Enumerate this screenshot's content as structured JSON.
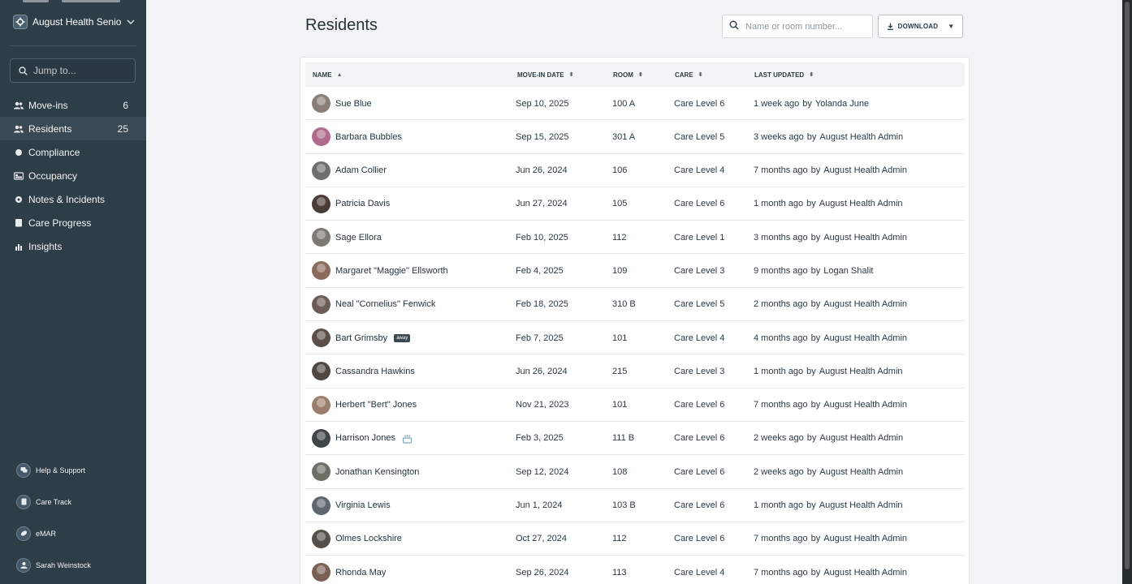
{
  "sidebar": {
    "org_name": "August Health Senior",
    "jump_placeholder": "Jump to...",
    "nav": [
      {
        "label": "Move-ins",
        "count": "6",
        "icon": "people-icon"
      },
      {
        "label": "Residents",
        "count": "25",
        "icon": "people-icon"
      },
      {
        "label": "Compliance",
        "count": "",
        "icon": "circle-check-icon"
      },
      {
        "label": "Occupancy",
        "count": "",
        "icon": "bed-icon"
      },
      {
        "label": "Notes & Incidents",
        "count": "",
        "icon": "notes-icon"
      },
      {
        "label": "Care Progress",
        "count": "",
        "icon": "clipboard-icon"
      },
      {
        "label": "Insights",
        "count": "",
        "icon": "chart-icon"
      }
    ],
    "bottom_links": [
      {
        "label": "Help & Support",
        "icon": "help-icon"
      },
      {
        "label": "Care Track",
        "icon": "care-track-icon"
      },
      {
        "label": "eMAR",
        "icon": "emar-icon"
      },
      {
        "label": "Sarah Weinstock",
        "icon": "user-icon"
      }
    ]
  },
  "page": {
    "title": "Residents",
    "search_placeholder": "Name or room number...",
    "download_label": "DOWNLOAD"
  },
  "table": {
    "headers": {
      "name": "NAME",
      "move_in": "MOVE-IN DATE",
      "room": "ROOM",
      "care": "CARE",
      "last_updated": "LAST UPDATED"
    },
    "by_word": "by",
    "rows": [
      {
        "name": "Sue Blue",
        "date": "Sep 10, 2025",
        "room": "100 A",
        "care": "Care Level 6",
        "updated": "1 week ago",
        "user": "Yolanda June",
        "badge": ""
      },
      {
        "name": "Barbara Bubbles",
        "date": "Sep 15, 2025",
        "room": "301 A",
        "care": "Care Level 5",
        "updated": "3 weeks ago",
        "user": "August Health Admin",
        "badge": ""
      },
      {
        "name": "Adam Collier",
        "date": "Jun 26, 2024",
        "room": "106",
        "care": "Care Level 4",
        "updated": "7 months ago",
        "user": "August Health Admin",
        "badge": ""
      },
      {
        "name": "Patricia Davis",
        "date": "Jun 27, 2024",
        "room": "105",
        "care": "Care Level 6",
        "updated": "1 month ago",
        "user": "August Health Admin",
        "badge": ""
      },
      {
        "name": "Sage Ellora",
        "date": "Feb 10, 2025",
        "room": "112",
        "care": "Care Level 1",
        "updated": "3 months ago",
        "user": "August Health Admin",
        "badge": ""
      },
      {
        "name": "Margaret \"Maggie\" Ellsworth",
        "date": "Feb 4, 2025",
        "room": "109",
        "care": "Care Level 3",
        "updated": "9 months ago",
        "user": "Logan Shalit",
        "badge": ""
      },
      {
        "name": "Neal \"Cornelius\" Fenwick",
        "date": "Feb 18, 2025",
        "room": "310 B",
        "care": "Care Level 5",
        "updated": "2 months ago",
        "user": "August Health Admin",
        "badge": ""
      },
      {
        "name": "Bart Grimsby",
        "date": "Feb 7, 2025",
        "room": "101",
        "care": "Care Level 4",
        "updated": "4 months ago",
        "user": "August Health Admin",
        "badge": "away"
      },
      {
        "name": "Cassandra Hawkins",
        "date": "Jun 26, 2024",
        "room": "215",
        "care": "Care Level 3",
        "updated": "1 month ago",
        "user": "August Health Admin",
        "badge": ""
      },
      {
        "name": "Herbert \"Bert\" Jones",
        "date": "Nov 21, 2023",
        "room": "101",
        "care": "Care Level 6",
        "updated": "7 months ago",
        "user": "August Health Admin",
        "badge": ""
      },
      {
        "name": "Harrison Jones",
        "date": "Feb 3, 2025",
        "room": "111 B",
        "care": "Care Level 6",
        "updated": "2 weeks ago",
        "user": "August Health Admin",
        "badge": "cake"
      },
      {
        "name": "Jonathan Kensington",
        "date": "Sep 12, 2024",
        "room": "108",
        "care": "Care Level 6",
        "updated": "2 weeks ago",
        "user": "August Health Admin",
        "badge": ""
      },
      {
        "name": "Virginia Lewis",
        "date": "Jun 1, 2024",
        "room": "103 B",
        "care": "Care Level 6",
        "updated": "1 month ago",
        "user": "August Health Admin",
        "badge": ""
      },
      {
        "name": "Olmes Lockshire",
        "date": "Oct 27, 2024",
        "room": "112",
        "care": "Care Level 6",
        "updated": "7 months ago",
        "user": "August Health Admin",
        "badge": ""
      },
      {
        "name": "Rhonda May",
        "date": "Sep 26, 2024",
        "room": "113",
        "care": "Care Level 4",
        "updated": "7 months ago",
        "user": "August Health Admin",
        "badge": ""
      }
    ]
  },
  "colors": {
    "sidebar_bg": "#2e3e47",
    "main_bg": "#f2f3f4",
    "text_dark": "#2b3a42"
  }
}
